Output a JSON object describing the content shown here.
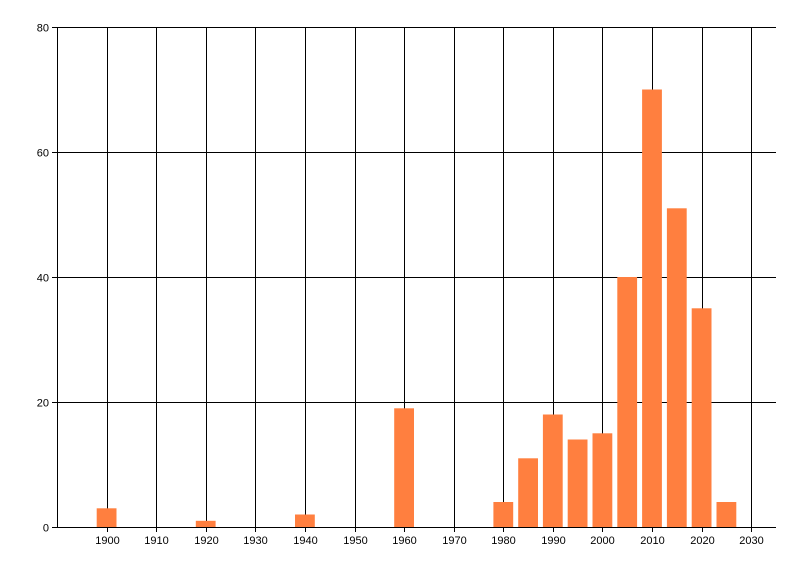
{
  "chart_data": {
    "type": "bar",
    "x": [
      1900,
      1920,
      1940,
      1960,
      1980,
      1985,
      1990,
      1995,
      2000,
      2005,
      2010,
      2015,
      2020,
      2025
    ],
    "values": [
      3,
      1,
      2,
      19,
      4,
      11,
      18,
      14,
      15,
      40,
      70,
      51,
      35,
      4
    ],
    "bar_width_years": 4,
    "xlim": [
      1890,
      2035
    ],
    "ylim": [
      0,
      80
    ],
    "x_ticks": [
      1900,
      1910,
      1920,
      1930,
      1940,
      1950,
      1960,
      1970,
      1980,
      1990,
      2000,
      2010,
      2020,
      2030
    ],
    "y_ticks": [
      0,
      20,
      40,
      60,
      80
    ],
    "title": "",
    "xlabel": "",
    "ylabel": "",
    "grid": true,
    "legend": "none",
    "bar_color": "#FF7F3F",
    "axis_color": "#000000"
  }
}
